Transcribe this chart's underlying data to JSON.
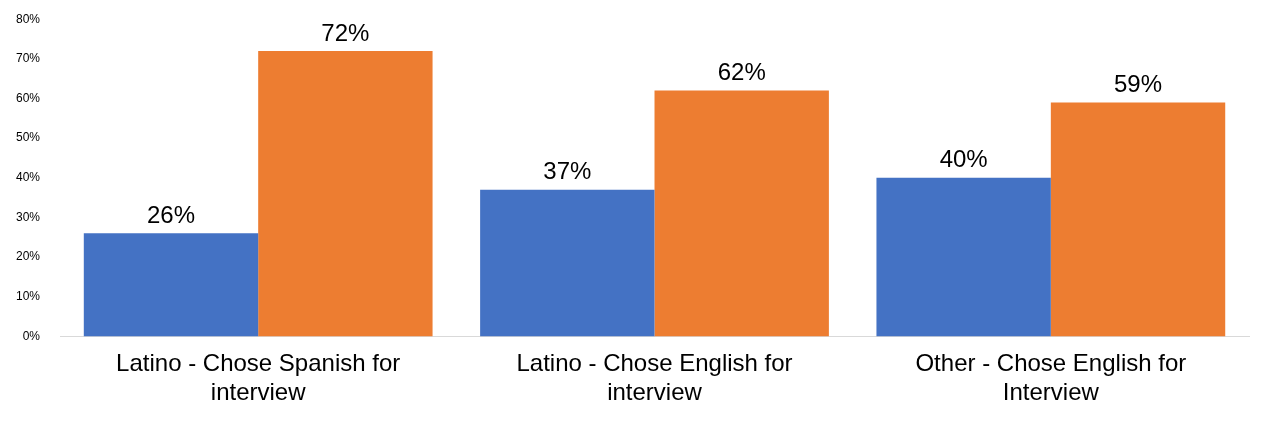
{
  "chart_data": {
    "type": "bar",
    "categories": [
      "Latino - Chose Spanish for interview",
      "Latino - Chose English for interview",
      "Other - Chose English for Interview"
    ],
    "series": [
      {
        "color": "#4472c4",
        "values": [
          26,
          37,
          40
        ],
        "value_labels": [
          "26%",
          "37%",
          "40%"
        ]
      },
      {
        "color": "#ed7d31",
        "values": [
          72,
          62,
          59
        ],
        "value_labels": [
          "72%",
          "62%",
          "59%"
        ]
      }
    ],
    "ylim": [
      0,
      80
    ],
    "yticks": [
      {
        "value": 0,
        "label": "0%"
      },
      {
        "value": 10,
        "label": "10%"
      },
      {
        "value": 20,
        "label": "20%"
      },
      {
        "value": 30,
        "label": "30%"
      },
      {
        "value": 40,
        "label": "40%"
      },
      {
        "value": 50,
        "label": "50%"
      },
      {
        "value": 60,
        "label": "60%"
      },
      {
        "value": 70,
        "label": "70%"
      },
      {
        "value": 80,
        "label": "80%"
      }
    ],
    "grid": false,
    "legend": false
  }
}
